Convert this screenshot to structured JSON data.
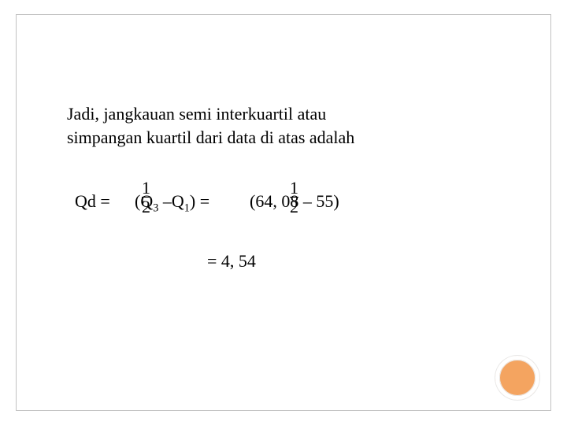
{
  "text": {
    "line1": "Jadi, jangkauan semi interkuartil atau",
    "line2": "simpangan kuartil dari data di atas adalah"
  },
  "equation": {
    "qd_label": "Qd = ",
    "frac_num": "1",
    "frac_den": "2",
    "expr1_open": "(Q",
    "sub3": "3",
    "expr1_mid": " –Q",
    "sub1": "1",
    "expr1_close": ") = ",
    "expr2": "(64, 08 – 55)",
    "result": "= 4, 54"
  },
  "style": {
    "accent_color": "#f4a460",
    "frame_color": "#c0c0c0",
    "text_color": "#000000",
    "font_size_pt": 22
  }
}
